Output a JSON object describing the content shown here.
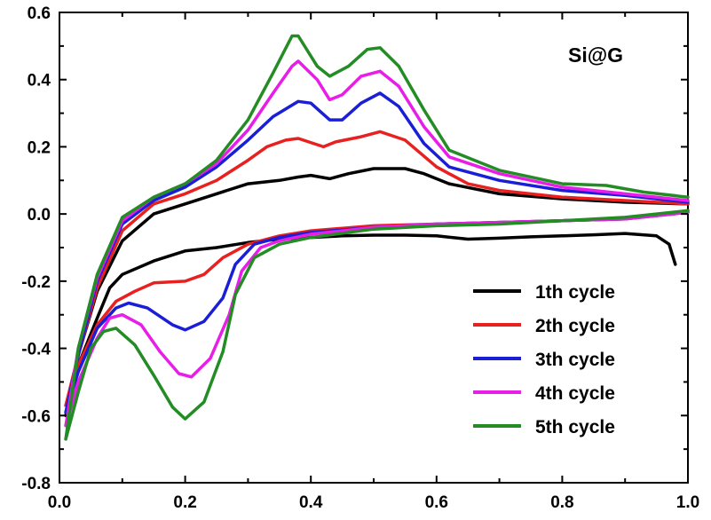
{
  "chart_data": {
    "type": "line",
    "title": "",
    "xlabel": "",
    "ylabel": "",
    "xlim": [
      0.0,
      1.0
    ],
    "ylim": [
      -0.8,
      0.6
    ],
    "x_ticks": [
      "0.0",
      "0.2",
      "0.4",
      "0.6",
      "0.8",
      "1.0"
    ],
    "y_ticks": [
      "-0.8",
      "-0.6",
      "-0.4",
      "-0.2",
      "0.0",
      "0.2",
      "0.4",
      "0.6"
    ],
    "annotation": "Si@G",
    "legend_position": "bottom-right",
    "grid": false,
    "series": [
      {
        "name": "1th cycle",
        "color": "#000000",
        "points": [
          [
            0.01,
            -0.6
          ],
          [
            0.03,
            -0.45
          ],
          [
            0.06,
            -0.31
          ],
          [
            0.08,
            -0.22
          ],
          [
            0.1,
            -0.18
          ],
          [
            0.15,
            -0.14
          ],
          [
            0.2,
            -0.11
          ],
          [
            0.25,
            -0.1
          ],
          [
            0.3,
            -0.085
          ],
          [
            0.35,
            -0.075
          ],
          [
            0.4,
            -0.07
          ],
          [
            0.45,
            -0.065
          ],
          [
            0.5,
            -0.063
          ],
          [
            0.55,
            -0.063
          ],
          [
            0.6,
            -0.065
          ],
          [
            0.65,
            -0.075
          ],
          [
            0.7,
            -0.072
          ],
          [
            0.75,
            -0.068
          ],
          [
            0.8,
            -0.065
          ],
          [
            0.85,
            -0.062
          ],
          [
            0.9,
            -0.058
          ],
          [
            0.95,
            -0.065
          ],
          [
            0.97,
            -0.09
          ],
          [
            0.98,
            -0.15
          ],
          [
            0.01,
            -0.6
          ],
          [
            0.03,
            -0.42
          ],
          [
            0.06,
            -0.23
          ],
          [
            0.1,
            -0.08
          ],
          [
            0.15,
            0.0
          ],
          [
            0.2,
            0.03
          ],
          [
            0.25,
            0.06
          ],
          [
            0.3,
            0.09
          ],
          [
            0.35,
            0.1
          ],
          [
            0.38,
            0.11
          ],
          [
            0.4,
            0.115
          ],
          [
            0.43,
            0.105
          ],
          [
            0.46,
            0.12
          ],
          [
            0.5,
            0.135
          ],
          [
            0.55,
            0.135
          ],
          [
            0.58,
            0.12
          ],
          [
            0.62,
            0.09
          ],
          [
            0.7,
            0.06
          ],
          [
            0.8,
            0.045
          ],
          [
            0.9,
            0.035
          ],
          [
            1.0,
            0.03
          ]
        ]
      },
      {
        "name": "2th cycle",
        "color": "#e8201f",
        "points": [
          [
            0.01,
            -0.57
          ],
          [
            0.03,
            -0.45
          ],
          [
            0.06,
            -0.33
          ],
          [
            0.09,
            -0.26
          ],
          [
            0.12,
            -0.23
          ],
          [
            0.15,
            -0.205
          ],
          [
            0.2,
            -0.2
          ],
          [
            0.23,
            -0.18
          ],
          [
            0.26,
            -0.13
          ],
          [
            0.3,
            -0.09
          ],
          [
            0.35,
            -0.065
          ],
          [
            0.4,
            -0.05
          ],
          [
            0.5,
            -0.035
          ],
          [
            0.6,
            -0.03
          ],
          [
            0.7,
            -0.025
          ],
          [
            0.8,
            -0.02
          ],
          [
            0.9,
            -0.015
          ],
          [
            1.0,
            0.01
          ],
          [
            0.01,
            -0.57
          ],
          [
            0.03,
            -0.42
          ],
          [
            0.06,
            -0.22
          ],
          [
            0.1,
            -0.05
          ],
          [
            0.15,
            0.03
          ],
          [
            0.2,
            0.06
          ],
          [
            0.25,
            0.1
          ],
          [
            0.3,
            0.16
          ],
          [
            0.33,
            0.2
          ],
          [
            0.36,
            0.22
          ],
          [
            0.38,
            0.225
          ],
          [
            0.42,
            0.2
          ],
          [
            0.44,
            0.215
          ],
          [
            0.48,
            0.23
          ],
          [
            0.51,
            0.245
          ],
          [
            0.55,
            0.22
          ],
          [
            0.6,
            0.14
          ],
          [
            0.65,
            0.09
          ],
          [
            0.7,
            0.07
          ],
          [
            0.8,
            0.05
          ],
          [
            0.9,
            0.04
          ],
          [
            1.0,
            0.03
          ]
        ]
      },
      {
        "name": "3th cycle",
        "color": "#1a1fd6",
        "points": [
          [
            0.01,
            -0.59
          ],
          [
            0.03,
            -0.47
          ],
          [
            0.06,
            -0.34
          ],
          [
            0.09,
            -0.28
          ],
          [
            0.11,
            -0.265
          ],
          [
            0.14,
            -0.28
          ],
          [
            0.18,
            -0.33
          ],
          [
            0.2,
            -0.345
          ],
          [
            0.23,
            -0.32
          ],
          [
            0.26,
            -0.25
          ],
          [
            0.28,
            -0.15
          ],
          [
            0.31,
            -0.09
          ],
          [
            0.35,
            -0.07
          ],
          [
            0.4,
            -0.055
          ],
          [
            0.5,
            -0.04
          ],
          [
            0.6,
            -0.03
          ],
          [
            0.7,
            -0.025
          ],
          [
            0.8,
            -0.02
          ],
          [
            0.9,
            -0.015
          ],
          [
            1.0,
            0.005
          ],
          [
            0.01,
            -0.59
          ],
          [
            0.03,
            -0.42
          ],
          [
            0.06,
            -0.2
          ],
          [
            0.1,
            -0.03
          ],
          [
            0.15,
            0.04
          ],
          [
            0.2,
            0.08
          ],
          [
            0.25,
            0.14
          ],
          [
            0.3,
            0.22
          ],
          [
            0.34,
            0.29
          ],
          [
            0.38,
            0.335
          ],
          [
            0.4,
            0.33
          ],
          [
            0.43,
            0.28
          ],
          [
            0.45,
            0.28
          ],
          [
            0.48,
            0.33
          ],
          [
            0.51,
            0.36
          ],
          [
            0.54,
            0.32
          ],
          [
            0.58,
            0.21
          ],
          [
            0.62,
            0.14
          ],
          [
            0.7,
            0.1
          ],
          [
            0.8,
            0.07
          ],
          [
            0.9,
            0.055
          ],
          [
            1.0,
            0.035
          ]
        ]
      },
      {
        "name": "4th cycle",
        "color": "#e81ee8",
        "points": [
          [
            0.01,
            -0.63
          ],
          [
            0.03,
            -0.5
          ],
          [
            0.06,
            -0.37
          ],
          [
            0.08,
            -0.31
          ],
          [
            0.1,
            -0.3
          ],
          [
            0.13,
            -0.33
          ],
          [
            0.16,
            -0.41
          ],
          [
            0.19,
            -0.475
          ],
          [
            0.21,
            -0.485
          ],
          [
            0.24,
            -0.43
          ],
          [
            0.27,
            -0.3
          ],
          [
            0.29,
            -0.17
          ],
          [
            0.32,
            -0.1
          ],
          [
            0.35,
            -0.08
          ],
          [
            0.4,
            -0.06
          ],
          [
            0.5,
            -0.04
          ],
          [
            0.6,
            -0.03
          ],
          [
            0.7,
            -0.025
          ],
          [
            0.8,
            -0.02
          ],
          [
            0.9,
            -0.015
          ],
          [
            1.0,
            0.005
          ],
          [
            0.01,
            -0.63
          ],
          [
            0.03,
            -0.4
          ],
          [
            0.06,
            -0.19
          ],
          [
            0.1,
            -0.02
          ],
          [
            0.15,
            0.05
          ],
          [
            0.2,
            0.09
          ],
          [
            0.25,
            0.15
          ],
          [
            0.3,
            0.25
          ],
          [
            0.34,
            0.36
          ],
          [
            0.37,
            0.44
          ],
          [
            0.38,
            0.455
          ],
          [
            0.41,
            0.4
          ],
          [
            0.43,
            0.34
          ],
          [
            0.45,
            0.355
          ],
          [
            0.48,
            0.41
          ],
          [
            0.51,
            0.425
          ],
          [
            0.54,
            0.38
          ],
          [
            0.58,
            0.26
          ],
          [
            0.62,
            0.17
          ],
          [
            0.7,
            0.12
          ],
          [
            0.8,
            0.08
          ],
          [
            0.9,
            0.06
          ],
          [
            1.0,
            0.04
          ]
        ]
      },
      {
        "name": "5th cycle",
        "color": "#238c24",
        "points": [
          [
            0.01,
            -0.67
          ],
          [
            0.03,
            -0.53
          ],
          [
            0.05,
            -0.4
          ],
          [
            0.07,
            -0.35
          ],
          [
            0.09,
            -0.34
          ],
          [
            0.12,
            -0.39
          ],
          [
            0.15,
            -0.48
          ],
          [
            0.18,
            -0.575
          ],
          [
            0.2,
            -0.61
          ],
          [
            0.23,
            -0.56
          ],
          [
            0.26,
            -0.41
          ],
          [
            0.28,
            -0.24
          ],
          [
            0.31,
            -0.13
          ],
          [
            0.35,
            -0.09
          ],
          [
            0.4,
            -0.07
          ],
          [
            0.5,
            -0.045
          ],
          [
            0.6,
            -0.035
          ],
          [
            0.7,
            -0.03
          ],
          [
            0.8,
            -0.02
          ],
          [
            0.9,
            -0.01
          ],
          [
            1.0,
            0.01
          ],
          [
            0.01,
            -0.67
          ],
          [
            0.03,
            -0.4
          ],
          [
            0.06,
            -0.18
          ],
          [
            0.1,
            -0.01
          ],
          [
            0.15,
            0.05
          ],
          [
            0.2,
            0.09
          ],
          [
            0.25,
            0.16
          ],
          [
            0.3,
            0.28
          ],
          [
            0.34,
            0.42
          ],
          [
            0.37,
            0.53
          ],
          [
            0.38,
            0.53
          ],
          [
            0.41,
            0.44
          ],
          [
            0.43,
            0.41
          ],
          [
            0.46,
            0.44
          ],
          [
            0.49,
            0.49
          ],
          [
            0.51,
            0.495
          ],
          [
            0.54,
            0.44
          ],
          [
            0.58,
            0.31
          ],
          [
            0.62,
            0.19
          ],
          [
            0.7,
            0.13
          ],
          [
            0.8,
            0.09
          ],
          [
            0.87,
            0.085
          ],
          [
            0.93,
            0.065
          ],
          [
            1.0,
            0.05
          ]
        ]
      }
    ]
  }
}
